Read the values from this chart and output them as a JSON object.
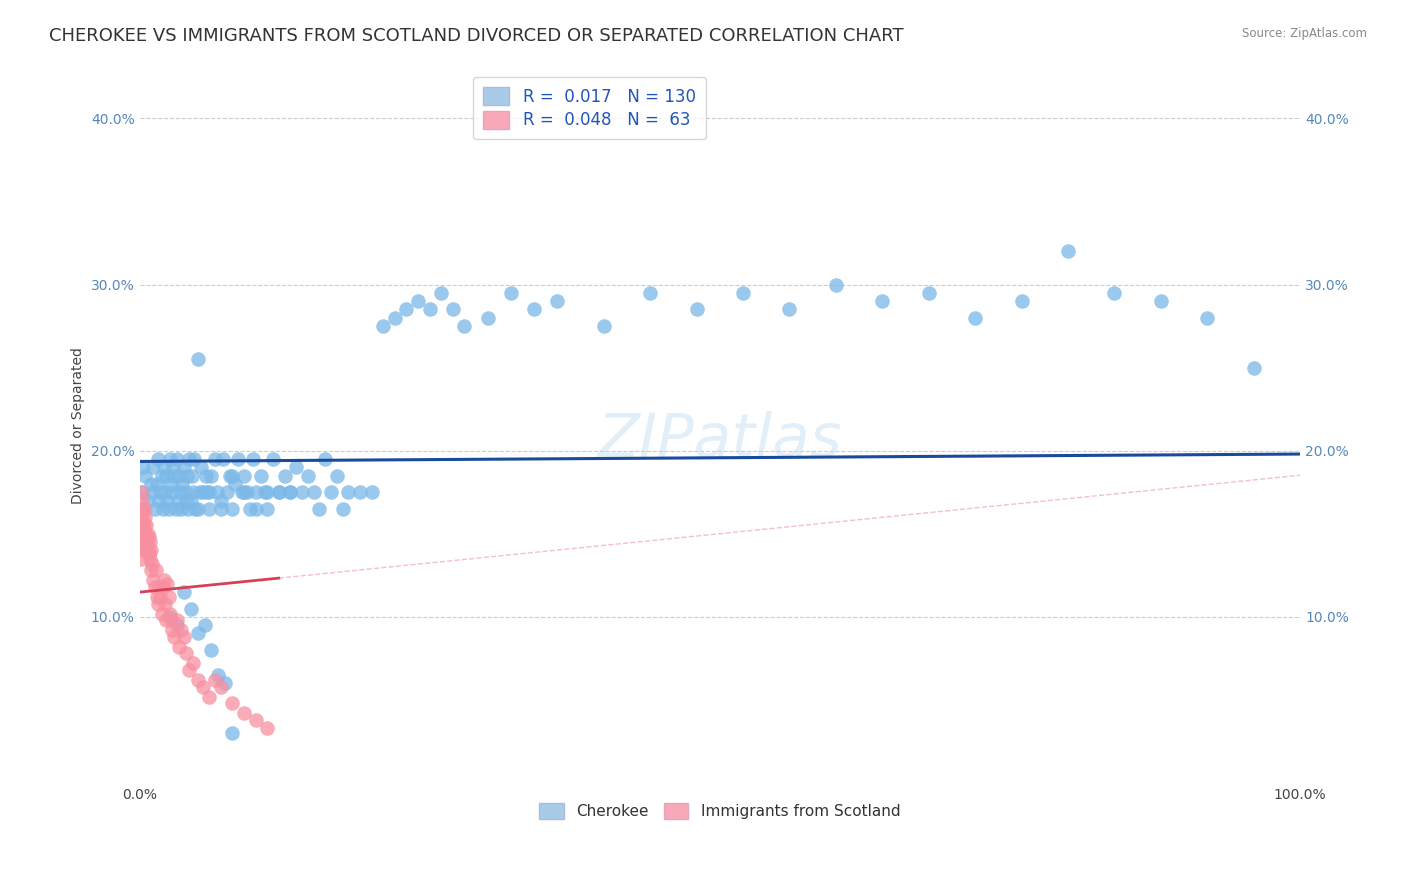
{
  "title": "CHEROKEE VS IMMIGRANTS FROM SCOTLAND DIVORCED OR SEPARATED CORRELATION CHART",
  "source": "Source: ZipAtlas.com",
  "ylabel": "Divorced or Separated",
  "xlim": [
    0.0,
    1.0
  ],
  "ylim": [
    0.0,
    0.43
  ],
  "ytick_vals": [
    0.1,
    0.2,
    0.3,
    0.4
  ],
  "ytick_labels": [
    "10.0%",
    "20.0%",
    "30.0%",
    "40.0%"
  ],
  "blue_scatter_color": "#7ab8e8",
  "pink_scatter_color": "#f88fa0",
  "blue_line_color": "#1a4a9c",
  "pink_line_color": "#d84055",
  "pink_dash_color": "#f0b0bc",
  "blue_dash_color": "#c8d8f0",
  "watermark": "ZIPatlas",
  "r_blue": 0.017,
  "r_pink": 0.048,
  "n_blue": 130,
  "n_pink": 63,
  "grid_color": "#cccccc",
  "background_color": "#ffffff",
  "title_fontsize": 13,
  "axis_label_fontsize": 10,
  "tick_fontsize": 10,
  "legend_patch_blue": "#a8cce8",
  "legend_patch_pink": "#f8a8b8",
  "legend_text_color": "#2255bb",
  "blue_scatter_x": [
    0.002,
    0.003,
    0.005,
    0.007,
    0.01,
    0.011,
    0.012,
    0.013,
    0.015,
    0.016,
    0.017,
    0.018,
    0.019,
    0.02,
    0.021,
    0.022,
    0.023,
    0.024,
    0.025,
    0.026,
    0.027,
    0.028,
    0.029,
    0.03,
    0.031,
    0.032,
    0.033,
    0.034,
    0.035,
    0.036,
    0.037,
    0.038,
    0.04,
    0.041,
    0.042,
    0.043,
    0.044,
    0.045,
    0.046,
    0.047,
    0.048,
    0.05,
    0.052,
    0.053,
    0.055,
    0.057,
    0.058,
    0.06,
    0.062,
    0.065,
    0.067,
    0.07,
    0.072,
    0.075,
    0.078,
    0.08,
    0.082,
    0.085,
    0.088,
    0.09,
    0.093,
    0.095,
    0.098,
    0.1,
    0.105,
    0.108,
    0.11,
    0.115,
    0.12,
    0.125,
    0.13,
    0.135,
    0.14,
    0.145,
    0.15,
    0.155,
    0.16,
    0.165,
    0.17,
    0.175,
    0.18,
    0.19,
    0.2,
    0.21,
    0.22,
    0.23,
    0.24,
    0.25,
    0.26,
    0.27,
    0.28,
    0.3,
    0.32,
    0.34,
    0.36,
    0.4,
    0.44,
    0.48,
    0.52,
    0.56,
    0.6,
    0.64,
    0.68,
    0.72,
    0.76,
    0.8,
    0.84,
    0.88,
    0.92,
    0.96,
    0.04,
    0.05,
    0.06,
    0.07,
    0.08,
    0.09,
    0.1,
    0.11,
    0.12,
    0.13,
    0.026,
    0.032,
    0.038,
    0.044,
    0.05,
    0.056,
    0.062,
    0.068,
    0.074,
    0.08
  ],
  "blue_scatter_y": [
    0.175,
    0.19,
    0.185,
    0.17,
    0.18,
    0.175,
    0.19,
    0.165,
    0.18,
    0.195,
    0.17,
    0.175,
    0.185,
    0.165,
    0.19,
    0.175,
    0.185,
    0.17,
    0.165,
    0.195,
    0.18,
    0.175,
    0.19,
    0.185,
    0.165,
    0.195,
    0.17,
    0.185,
    0.175,
    0.165,
    0.18,
    0.19,
    0.175,
    0.185,
    0.165,
    0.195,
    0.17,
    0.185,
    0.175,
    0.195,
    0.165,
    0.255,
    0.175,
    0.19,
    0.175,
    0.185,
    0.175,
    0.165,
    0.185,
    0.195,
    0.175,
    0.165,
    0.195,
    0.175,
    0.185,
    0.165,
    0.18,
    0.195,
    0.175,
    0.185,
    0.175,
    0.165,
    0.195,
    0.175,
    0.185,
    0.175,
    0.165,
    0.195,
    0.175,
    0.185,
    0.175,
    0.19,
    0.175,
    0.185,
    0.175,
    0.165,
    0.195,
    0.175,
    0.185,
    0.165,
    0.175,
    0.175,
    0.175,
    0.275,
    0.28,
    0.285,
    0.29,
    0.285,
    0.295,
    0.285,
    0.275,
    0.28,
    0.295,
    0.285,
    0.29,
    0.275,
    0.295,
    0.285,
    0.295,
    0.285,
    0.3,
    0.29,
    0.295,
    0.28,
    0.29,
    0.32,
    0.295,
    0.29,
    0.28,
    0.25,
    0.17,
    0.165,
    0.175,
    0.17,
    0.185,
    0.175,
    0.165,
    0.175,
    0.175,
    0.175,
    0.1,
    0.095,
    0.115,
    0.105,
    0.09,
    0.095,
    0.08,
    0.065,
    0.06,
    0.03
  ],
  "pink_scatter_x": [
    0.001,
    0.001,
    0.001,
    0.001,
    0.001,
    0.002,
    0.002,
    0.002,
    0.002,
    0.003,
    0.003,
    0.003,
    0.004,
    0.004,
    0.004,
    0.005,
    0.005,
    0.005,
    0.006,
    0.006,
    0.007,
    0.007,
    0.008,
    0.008,
    0.009,
    0.009,
    0.01,
    0.01,
    0.011,
    0.012,
    0.013,
    0.014,
    0.015,
    0.016,
    0.017,
    0.018,
    0.019,
    0.02,
    0.021,
    0.022,
    0.023,
    0.024,
    0.025,
    0.026,
    0.027,
    0.028,
    0.03,
    0.032,
    0.034,
    0.036,
    0.038,
    0.04,
    0.043,
    0.046,
    0.05,
    0.055,
    0.06,
    0.065,
    0.07,
    0.08,
    0.09,
    0.1,
    0.11
  ],
  "pink_scatter_y": [
    0.175,
    0.165,
    0.155,
    0.145,
    0.135,
    0.17,
    0.16,
    0.15,
    0.14,
    0.165,
    0.155,
    0.145,
    0.165,
    0.155,
    0.145,
    0.16,
    0.15,
    0.14,
    0.155,
    0.145,
    0.15,
    0.14,
    0.148,
    0.138,
    0.145,
    0.135,
    0.14,
    0.128,
    0.132,
    0.122,
    0.118,
    0.128,
    0.112,
    0.108,
    0.118,
    0.112,
    0.102,
    0.118,
    0.122,
    0.108,
    0.098,
    0.12,
    0.112,
    0.102,
    0.098,
    0.092,
    0.088,
    0.098,
    0.082,
    0.092,
    0.088,
    0.078,
    0.068,
    0.072,
    0.062,
    0.058,
    0.052,
    0.062,
    0.058,
    0.048,
    0.042,
    0.038,
    0.033
  ]
}
